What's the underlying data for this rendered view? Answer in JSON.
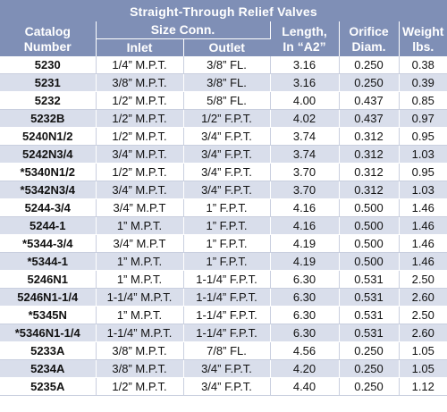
{
  "table": {
    "title": "Straight-Through Relief Valves",
    "headers": {
      "catalog_line1": "Catalog",
      "catalog_line2": "Number",
      "size_conn": "Size Conn.",
      "inlet": "Inlet",
      "outlet": "Outlet",
      "length_line1": "Length,",
      "length_line2": "In “A2”",
      "orifice_line1": "Orifice",
      "orifice_line2": "Diam.",
      "weight_line1": "Weight",
      "weight_line2": "lbs."
    },
    "rows": [
      {
        "catalog": "5230",
        "inlet": "1/4” M.P.T.",
        "outlet": "3/8” FL.",
        "length": "3.16",
        "orifice": "0.250",
        "weight": "0.38"
      },
      {
        "catalog": "5231",
        "inlet": "3/8” M.P.T.",
        "outlet": "3/8” FL.",
        "length": "3.16",
        "orifice": "0.250",
        "weight": "0.39"
      },
      {
        "catalog": "5232",
        "inlet": "1/2” M.P.T.",
        "outlet": "5/8” FL.",
        "length": "4.00",
        "orifice": "0.437",
        "weight": "0.85"
      },
      {
        "catalog": "5232B",
        "inlet": "1/2” M.P.T.",
        "outlet": "1/2” F.P.T.",
        "length": "4.02",
        "orifice": "0.437",
        "weight": "0.97"
      },
      {
        "catalog": "5240N1/2",
        "inlet": "1/2” M.P.T.",
        "outlet": "3/4” F.P.T.",
        "length": "3.74",
        "orifice": "0.312",
        "weight": "0.95"
      },
      {
        "catalog": "5242N3/4",
        "inlet": "3/4” M.P.T.",
        "outlet": "3/4” F.P.T.",
        "length": "3.74",
        "orifice": "0.312",
        "weight": "1.03"
      },
      {
        "catalog": "*5340N1/2",
        "inlet": "1/2” M.P.T.",
        "outlet": "3/4” F.P.T.",
        "length": "3.70",
        "orifice": "0.312",
        "weight": "0.95"
      },
      {
        "catalog": "*5342N3/4",
        "inlet": "3/4” M.P.T.",
        "outlet": "3/4” F.P.T.",
        "length": "3.70",
        "orifice": "0.312",
        "weight": "1.03"
      },
      {
        "catalog": "5244-3/4",
        "inlet": "3/4” M.P.T",
        "outlet": "1” F.P.T.",
        "length": "4.16",
        "orifice": "0.500",
        "weight": "1.46"
      },
      {
        "catalog": "5244-1",
        "inlet": "1” M.P.T.",
        "outlet": "1” F.P.T.",
        "length": "4.16",
        "orifice": "0.500",
        "weight": "1.46"
      },
      {
        "catalog": "*5344-3/4",
        "inlet": "3/4” M.P.T",
        "outlet": "1” F.P.T.",
        "length": "4.19",
        "orifice": "0.500",
        "weight": "1.46"
      },
      {
        "catalog": "*5344-1",
        "inlet": "1” M.P.T.",
        "outlet": "1” F.P.T.",
        "length": "4.19",
        "orifice": "0.500",
        "weight": "1.46"
      },
      {
        "catalog": "5246N1",
        "inlet": "1” M.P.T.",
        "outlet": "1-1/4” F.P.T.",
        "length": "6.30",
        "orifice": "0.531",
        "weight": "2.50"
      },
      {
        "catalog": "5246N1-1/4",
        "inlet": "1-1/4” M.P.T.",
        "outlet": "1-1/4” F.P.T.",
        "length": "6.30",
        "orifice": "0.531",
        "weight": "2.60"
      },
      {
        "catalog": "*5345N",
        "inlet": "1” M.P.T.",
        "outlet": "1-1/4” F.P.T.",
        "length": "6.30",
        "orifice": "0.531",
        "weight": "2.50"
      },
      {
        "catalog": "*5346N1-1/4",
        "inlet": "1-1/4” M.P.T.",
        "outlet": "1-1/4” F.P.T.",
        "length": "6.30",
        "orifice": "0.531",
        "weight": "2.60"
      },
      {
        "catalog": "5233A",
        "inlet": "3/8” M.P.T.",
        "outlet": "7/8” FL.",
        "length": "4.56",
        "orifice": "0.250",
        "weight": "1.05"
      },
      {
        "catalog": "5234A",
        "inlet": "3/8” M.P.T.",
        "outlet": "3/4” F.P.T.",
        "length": "4.20",
        "orifice": "0.250",
        "weight": "1.05"
      },
      {
        "catalog": "5235A",
        "inlet": "1/2” M.P.T.",
        "outlet": "3/4” F.P.T.",
        "length": "4.40",
        "orifice": "0.250",
        "weight": "1.12"
      }
    ]
  },
  "colors": {
    "header_bg": "#7f8fb6",
    "shaded_row": "#d9deeb",
    "plain_row": "#ffffff"
  }
}
